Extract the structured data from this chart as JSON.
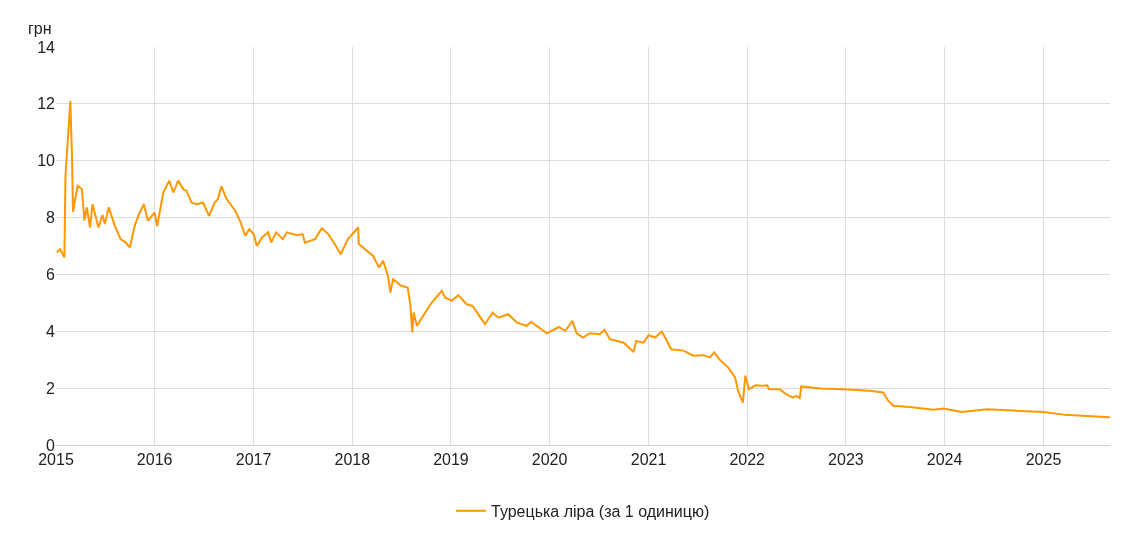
{
  "chart_data": {
    "type": "line",
    "ylabel": "грн",
    "x": [
      "2015-01-04",
      "2015-01-16",
      "2015-02-01",
      "2015-02-05",
      "2015-02-10",
      "2015-02-18",
      "2015-02-23",
      "2015-03-01",
      "2015-03-05",
      "2015-03-13",
      "2015-03-22",
      "2015-04-07",
      "2015-04-16",
      "2015-04-25",
      "2015-05-07",
      "2015-05-16",
      "2015-06-07",
      "2015-06-22",
      "2015-07-01",
      "2015-07-15",
      "2015-08-07",
      "2015-08-28",
      "2015-09-16",
      "2015-10-01",
      "2015-10-19",
      "2015-11-01",
      "2015-11-22",
      "2015-12-07",
      "2016-01-01",
      "2016-01-10",
      "2016-02-02",
      "2016-02-24",
      "2016-03-10",
      "2016-03-28",
      "2016-04-16",
      "2016-04-28",
      "2016-05-16",
      "2016-06-04",
      "2016-06-28",
      "2016-07-20",
      "2016-08-10",
      "2016-08-22",
      "2016-09-04",
      "2016-09-23",
      "2016-10-25",
      "2016-11-14",
      "2016-12-01",
      "2016-12-16",
      "2017-01-01",
      "2017-01-13",
      "2017-02-01",
      "2017-02-24",
      "2017-03-07",
      "2017-03-25",
      "2017-04-19",
      "2017-05-04",
      "2017-06-10",
      "2017-07-01",
      "2017-07-10",
      "2017-08-16",
      "2017-09-10",
      "2017-10-04",
      "2017-10-28",
      "2017-11-19",
      "2017-12-16",
      "2018-01-23",
      "2018-01-25",
      "2018-03-19",
      "2018-04-10",
      "2018-04-25",
      "2018-05-13",
      "2018-05-22",
      "2018-06-01",
      "2018-07-01",
      "2018-07-25",
      "2018-08-04",
      "2018-08-11",
      "2018-08-16",
      "2018-08-28",
      "2018-09-28",
      "2018-10-22",
      "2018-11-28",
      "2018-12-10",
      "2019-01-04",
      "2019-01-28",
      "2019-02-28",
      "2019-03-22",
      "2019-05-07",
      "2019-06-04",
      "2019-06-25",
      "2019-08-01",
      "2019-09-01",
      "2019-10-07",
      "2019-10-25",
      "2019-12-22",
      "2020-02-04",
      "2020-02-28",
      "2020-03-25",
      "2020-04-10",
      "2020-05-04",
      "2020-05-28",
      "2020-07-04",
      "2020-07-22",
      "2020-08-11",
      "2020-10-01",
      "2020-11-07",
      "2020-11-16",
      "2020-12-13",
      "2021-01-01",
      "2021-01-25",
      "2021-02-19",
      "2021-03-07",
      "2021-03-25",
      "2021-05-10",
      "2021-06-16",
      "2021-07-22",
      "2021-08-16",
      "2021-09-01",
      "2021-09-19",
      "2021-10-22",
      "2021-11-17",
      "2021-11-28",
      "2021-12-16",
      "2021-12-25",
      "2022-01-07",
      "2022-02-01",
      "2022-02-25",
      "2022-03-16",
      "2022-03-22",
      "2022-05-01",
      "2022-05-25",
      "2022-06-19",
      "2022-07-01",
      "2022-07-14",
      "2022-07-20",
      "2022-09-28",
      "2022-12-22",
      "2023-03-30",
      "2023-05-19",
      "2023-06-07",
      "2023-06-25",
      "2023-08-25",
      "2023-11-22",
      "2023-12-28",
      "2024-03-04",
      "2024-06-07",
      "2024-10-07",
      "2025-01-01",
      "2025-03-22",
      "2025-06-10",
      "2025-09-04"
    ],
    "series": [
      {
        "name": "Турецька ліра (за 1 одиницю)",
        "color": "#ff9800",
        "values": [
          6.77,
          6.89,
          6.6,
          9.47,
          10.2,
          11.35,
          12.1,
          10.2,
          8.2,
          8.65,
          9.12,
          9.0,
          7.9,
          8.36,
          7.65,
          8.47,
          7.65,
          8.09,
          7.77,
          8.36,
          7.7,
          7.24,
          7.12,
          6.95,
          7.7,
          8.06,
          8.47,
          7.89,
          8.18,
          7.7,
          8.88,
          9.3,
          8.88,
          9.3,
          9.0,
          8.94,
          8.53,
          8.47,
          8.53,
          8.06,
          8.53,
          8.65,
          9.1,
          8.65,
          8.24,
          7.83,
          7.36,
          7.59,
          7.42,
          7.0,
          7.3,
          7.48,
          7.12,
          7.48,
          7.24,
          7.48,
          7.38,
          7.42,
          7.12,
          7.24,
          7.62,
          7.42,
          7.07,
          6.71,
          7.24,
          7.65,
          7.07,
          6.65,
          6.24,
          6.48,
          5.95,
          5.36,
          5.83,
          5.6,
          5.54,
          4.9,
          3.96,
          4.66,
          4.19,
          4.66,
          5.01,
          5.42,
          5.19,
          5.07,
          5.27,
          4.95,
          4.89,
          4.25,
          4.66,
          4.48,
          4.6,
          4.31,
          4.19,
          4.33,
          3.93,
          4.15,
          4.01,
          4.37,
          3.93,
          3.78,
          3.93,
          3.9,
          4.05,
          3.72,
          3.6,
          3.27,
          3.66,
          3.6,
          3.86,
          3.78,
          3.99,
          3.72,
          3.37,
          3.32,
          3.14,
          3.16,
          3.08,
          3.26,
          3.02,
          2.73,
          2.38,
          1.91,
          1.49,
          2.44,
          1.96,
          2.1,
          2.08,
          2.1,
          1.96,
          1.96,
          1.79,
          1.67,
          1.73,
          1.65,
          2.06,
          1.99,
          1.96,
          1.91,
          1.85,
          1.55,
          1.38,
          1.34,
          1.24,
          1.28,
          1.16,
          1.26,
          1.2,
          1.16,
          1.06,
          1.02,
          0.98
        ]
      }
    ],
    "xlim": [
      "2015-01-01",
      "2025-09-04"
    ],
    "xticks": [
      {
        "value": "2015-01-01",
        "label": "2015"
      },
      {
        "value": "2016-01-01",
        "label": "2016"
      },
      {
        "value": "2017-01-01",
        "label": "2017"
      },
      {
        "value": "2018-01-01",
        "label": "2018"
      },
      {
        "value": "2019-01-01",
        "label": "2019"
      },
      {
        "value": "2020-01-01",
        "label": "2020"
      },
      {
        "value": "2021-01-01",
        "label": "2021"
      },
      {
        "value": "2022-01-01",
        "label": "2022"
      },
      {
        "value": "2023-01-01",
        "label": "2023"
      },
      {
        "value": "2024-01-01",
        "label": "2024"
      },
      {
        "value": "2025-01-01",
        "label": "2025"
      }
    ],
    "ylim": [
      0,
      14
    ],
    "yticks": [
      0,
      2,
      4,
      6,
      8,
      10,
      12,
      14
    ],
    "grid": true,
    "legend": "bottom",
    "marker": "none",
    "line_style": "solid"
  }
}
